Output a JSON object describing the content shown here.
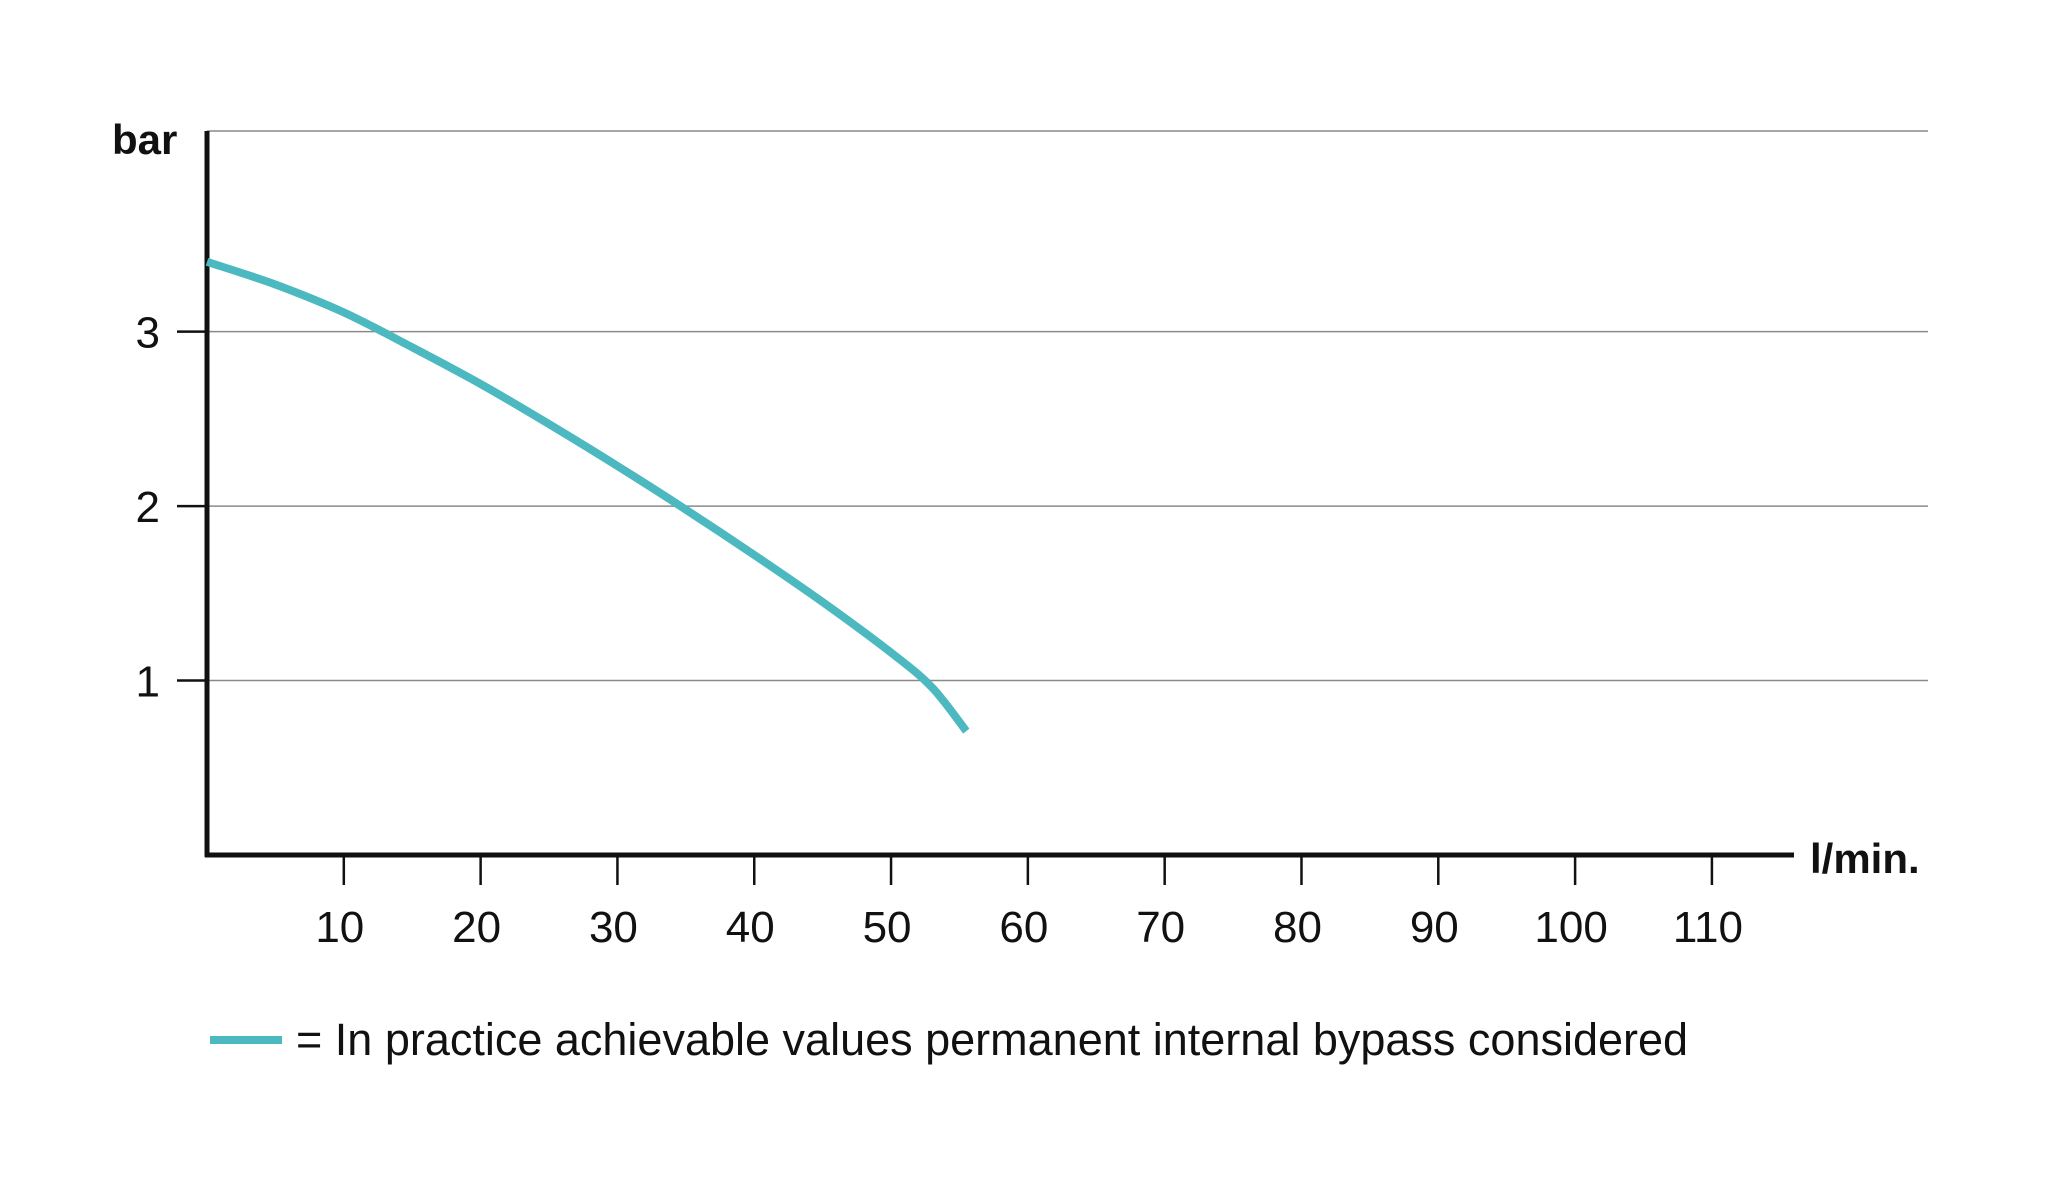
{
  "chart_data": {
    "type": "line",
    "title": "",
    "xlabel": "l/min.",
    "ylabel": "bar",
    "xlim": [
      0,
      116
    ],
    "ylim": [
      0,
      4.15
    ],
    "x_ticks": [
      10,
      20,
      30,
      40,
      50,
      60,
      70,
      80,
      90,
      100,
      110
    ],
    "x_tick_labels": [
      "10",
      "20",
      "30",
      "40",
      "50",
      "60",
      "70",
      "80",
      "90",
      "100",
      "110"
    ],
    "y_ticks": [
      1,
      2,
      3
    ],
    "y_tick_labels": [
      "1",
      "2",
      "3"
    ],
    "grid": true,
    "legend": {
      "placement": "bottom-left",
      "text": "= In practice achievable values permanent internal bypass considered"
    },
    "series": [
      {
        "color": "#4cb8c0",
        "x": [
          0,
          5,
          10,
          15,
          20,
          25,
          30,
          35,
          40,
          45,
          50,
          53,
          55.5
        ],
        "y": [
          3.4,
          3.27,
          3.11,
          2.91,
          2.7,
          2.47,
          2.23,
          1.98,
          1.72,
          1.45,
          1.16,
          0.96,
          0.71
        ]
      }
    ]
  }
}
